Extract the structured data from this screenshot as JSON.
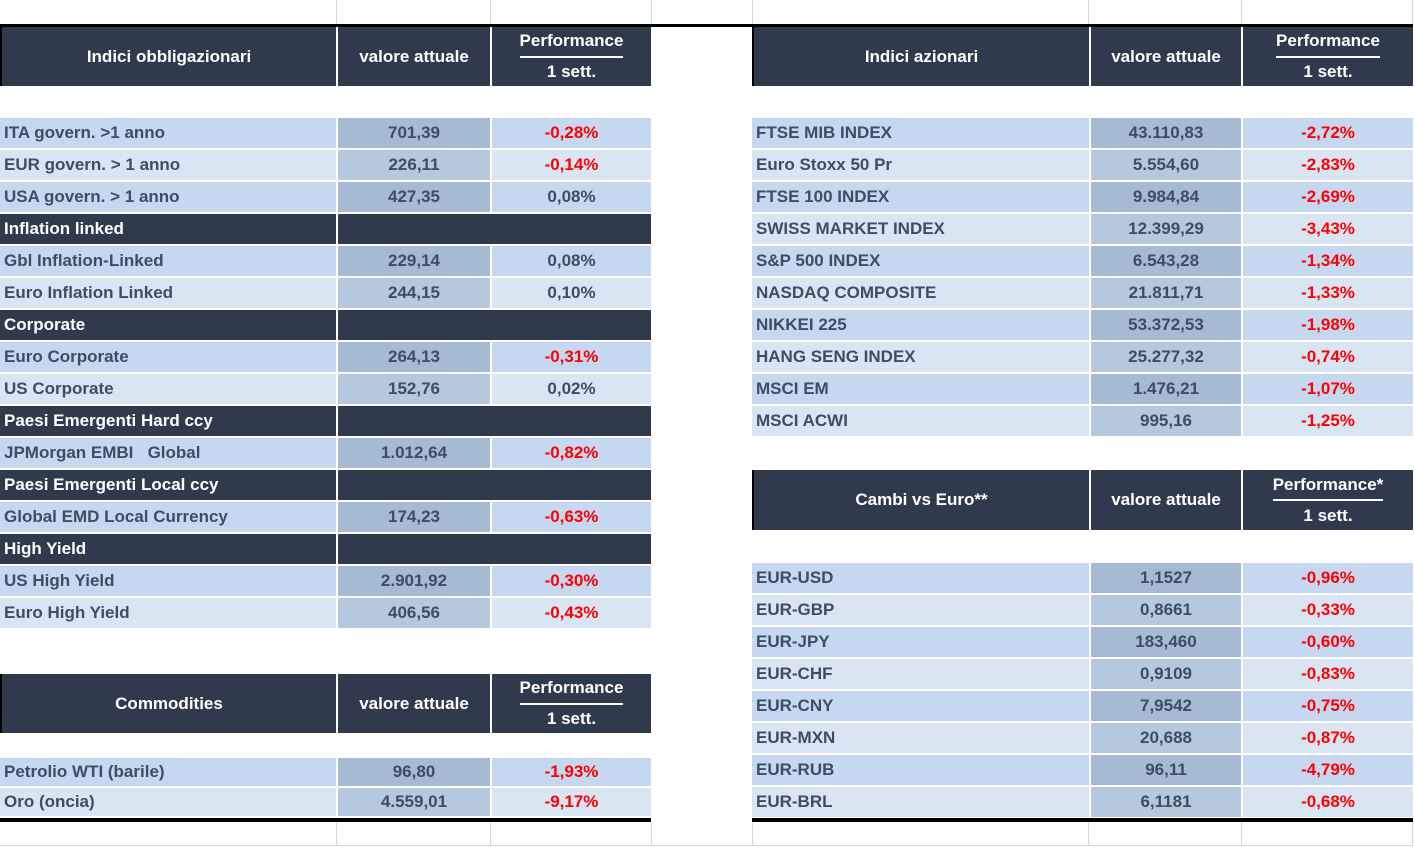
{
  "colors": {
    "header_bg": "#2F3B4D",
    "row_shade_dark": "#C6D8EF",
    "row_shade_light": "#DAE5F4",
    "value_shade_dark": "#A7BAD3",
    "value_shade_light": "#B6C8DD",
    "negative_text": "#FF0000",
    "label_text": "#3F4D63"
  },
  "tables": {
    "bonds": {
      "title": "Indici obbligazionari",
      "value_col": "valore attuale",
      "perf_line1": "Performance",
      "perf_line2": "1 sett.",
      "rows": [
        {
          "type": "data",
          "label": "ITA govern. >1 anno",
          "value": "701,39",
          "perf": "-0,28%",
          "negative": true
        },
        {
          "type": "data",
          "label": "EUR govern. > 1 anno",
          "value": "226,11",
          "perf": "-0,14%",
          "negative": true
        },
        {
          "type": "data",
          "label": "USA govern. > 1 anno",
          "value": "427,35",
          "perf": "0,08%",
          "negative": false
        },
        {
          "type": "section",
          "label": "Inflation linked"
        },
        {
          "type": "data",
          "label": "Gbl Inflation-Linked",
          "value": "229,14",
          "perf": "0,08%",
          "negative": false
        },
        {
          "type": "data",
          "label": "Euro Inflation Linked",
          "value": "244,15",
          "perf": "0,10%",
          "negative": false
        },
        {
          "type": "section",
          "label": "Corporate"
        },
        {
          "type": "data",
          "label": "Euro Corporate",
          "value": "264,13",
          "perf": "-0,31%",
          "negative": true
        },
        {
          "type": "data",
          "label": "US Corporate",
          "value": "152,76",
          "perf": "0,02%",
          "negative": false
        },
        {
          "type": "section",
          "label": "Paesi Emergenti Hard ccy"
        },
        {
          "type": "data",
          "label": "JPMorgan EMBI   Global",
          "value": "1.012,64",
          "perf": "-0,82%",
          "negative": true
        },
        {
          "type": "section",
          "label": "Paesi Emergenti Local ccy"
        },
        {
          "type": "data",
          "label": "Global EMD Local Currency",
          "value": "174,23",
          "perf": "-0,63%",
          "negative": true
        },
        {
          "type": "section",
          "label": "High Yield"
        },
        {
          "type": "data",
          "label": "US High Yield",
          "value": "2.901,92",
          "perf": "-0,30%",
          "negative": true
        },
        {
          "type": "data",
          "label": "Euro High Yield",
          "value": "406,56",
          "perf": "-0,43%",
          "negative": true
        }
      ]
    },
    "equities": {
      "title": "Indici azionari",
      "value_col": "valore attuale",
      "perf_line1": "Performance",
      "perf_line2": "1 sett.",
      "rows": [
        {
          "type": "data",
          "label": "FTSE MIB INDEX",
          "value": "43.110,83",
          "perf": "-2,72%",
          "negative": true
        },
        {
          "type": "data",
          "label": "Euro Stoxx 50 Pr",
          "value": "5.554,60",
          "perf": "-2,83%",
          "negative": true
        },
        {
          "type": "data",
          "label": "FTSE 100 INDEX",
          "value": "9.984,84",
          "perf": "-2,69%",
          "negative": true
        },
        {
          "type": "data",
          "label": "SWISS MARKET INDEX",
          "value": "12.399,29",
          "perf": "-3,43%",
          "negative": true
        },
        {
          "type": "data",
          "label": "S&P 500 INDEX",
          "value": "6.543,28",
          "perf": "-1,34%",
          "negative": true
        },
        {
          "type": "data",
          "label": "NASDAQ COMPOSITE",
          "value": "21.811,71",
          "perf": "-1,33%",
          "negative": true
        },
        {
          "type": "data",
          "label": "NIKKEI 225",
          "value": "53.372,53",
          "perf": "-1,98%",
          "negative": true
        },
        {
          "type": "data",
          "label": "HANG SENG INDEX",
          "value": "25.277,32",
          "perf": "-0,74%",
          "negative": true
        },
        {
          "type": "data",
          "label": "MSCI EM",
          "value": "1.476,21",
          "perf": "-1,07%",
          "negative": true
        },
        {
          "type": "data",
          "label": "MSCI ACWI",
          "value": "995,16",
          "perf": "-1,25%",
          "negative": true
        }
      ]
    },
    "commodities": {
      "title": "Commodities",
      "value_col": "valore attuale",
      "perf_line1": "Performance",
      "perf_line2": "1 sett.",
      "rows": [
        {
          "type": "data",
          "label": "Petrolio WTI (barile)",
          "value": "96,80",
          "perf": "-1,93%",
          "negative": true
        },
        {
          "type": "data",
          "label": "Oro (oncia)",
          "value": "4.559,01",
          "perf": "-9,17%",
          "negative": true
        }
      ]
    },
    "fx": {
      "title": "Cambi vs Euro**",
      "value_col": "valore attuale",
      "perf_line1": "Performance*",
      "perf_line2": "1 sett.",
      "rows": [
        {
          "type": "data",
          "label": "EUR-USD",
          "value": "1,1527",
          "perf": "-0,96%",
          "negative": true
        },
        {
          "type": "data",
          "label": "EUR-GBP",
          "value": "0,8661",
          "perf": "-0,33%",
          "negative": true
        },
        {
          "type": "data",
          "label": "EUR-JPY",
          "value": "183,460",
          "perf": "-0,60%",
          "negative": true
        },
        {
          "type": "data",
          "label": "EUR-CHF",
          "value": "0,9109",
          "perf": "-0,83%",
          "negative": true
        },
        {
          "type": "data",
          "label": "EUR-CNY",
          "value": "7,9542",
          "perf": "-0,75%",
          "negative": true
        },
        {
          "type": "data",
          "label": "EUR-MXN",
          "value": "20,688",
          "perf": "-0,87%",
          "negative": true
        },
        {
          "type": "data",
          "label": "EUR-RUB",
          "value": "96,11",
          "perf": "-4,79%",
          "negative": true
        },
        {
          "type": "data",
          "label": "EUR-BRL",
          "value": "6,1181",
          "perf": "-0,68%",
          "negative": true
        }
      ]
    }
  }
}
